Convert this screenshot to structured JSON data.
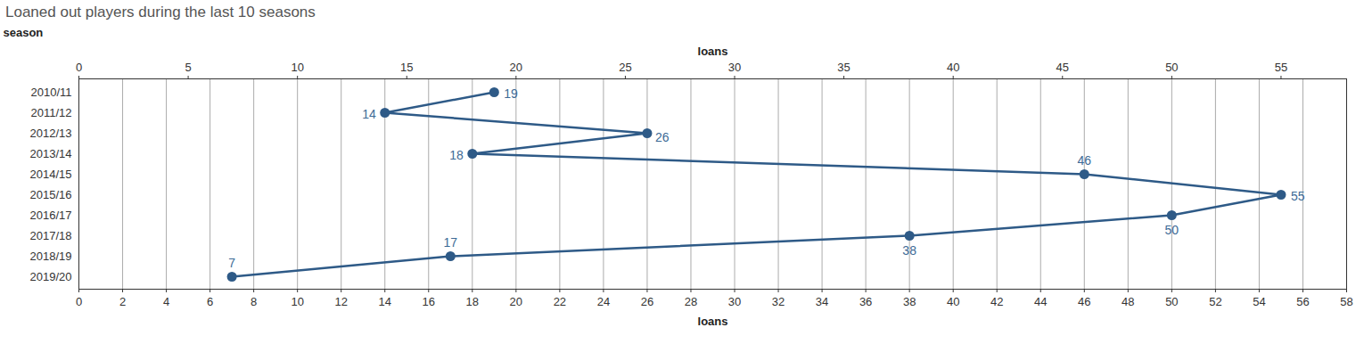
{
  "chart_data": {
    "type": "line",
    "title": "Loaned out players during the last 10 seasons",
    "orientation": "horizontal",
    "categories": [
      "2010/11",
      "2011/12",
      "2012/13",
      "2013/14",
      "2014/15",
      "2015/16",
      "2016/17",
      "2017/18",
      "2018/19",
      "2019/20"
    ],
    "values": [
      19,
      14,
      26,
      18,
      46,
      55,
      50,
      38,
      17,
      7
    ],
    "color": "#2e5a87",
    "marker": "circle",
    "line_style": "solid",
    "data_labels": true,
    "grid": true,
    "xlabel": "loans",
    "ylabel": "season",
    "xlim": [
      0,
      58
    ],
    "xticks": [
      0,
      2,
      4,
      6,
      8,
      10,
      12,
      14,
      16,
      18,
      20,
      22,
      24,
      26,
      28,
      30,
      32,
      34,
      36,
      38,
      40,
      42,
      44,
      46,
      48,
      50,
      52,
      54,
      56,
      58
    ],
    "x2label": "loans",
    "x2ticks": [
      0,
      5,
      10,
      15,
      20,
      25,
      30,
      35,
      40,
      45,
      50,
      55
    ]
  }
}
